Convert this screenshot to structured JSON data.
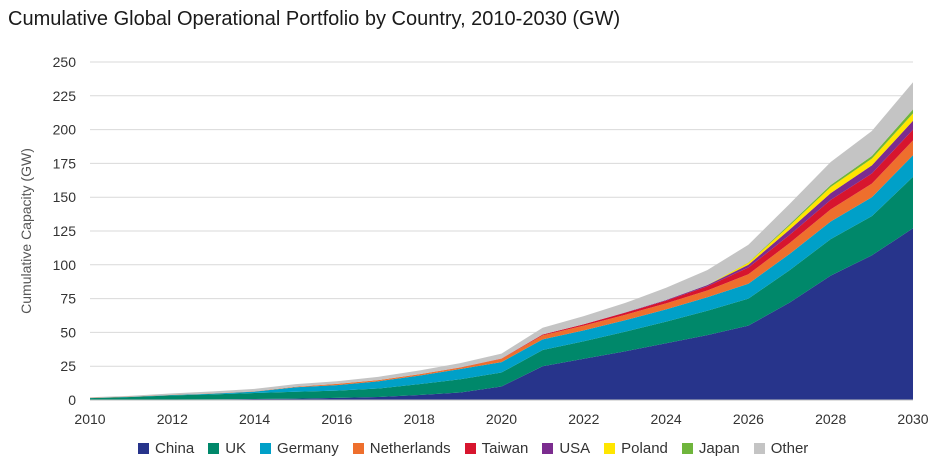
{
  "chart_data": {
    "type": "area",
    "stacked": true,
    "title": "Cumulative Global Operational Portfolio by Country, 2010-2030 (GW)",
    "xlabel": "",
    "ylabel": "Cumulative Capacity (GW)",
    "ylim": [
      0,
      250
    ],
    "yticks": [
      "0",
      "25",
      "50",
      "75",
      "100",
      "125",
      "150",
      "175",
      "200",
      "225",
      "250"
    ],
    "x": [
      2010,
      2011,
      2012,
      2013,
      2014,
      2015,
      2016,
      2017,
      2018,
      2019,
      2020,
      2021,
      2022,
      2023,
      2024,
      2025,
      2026,
      2027,
      2028,
      2029,
      2030
    ],
    "xticks": [
      "2010",
      "2012",
      "2014",
      "2016",
      "2018",
      "2020",
      "2022",
      "2024",
      "2026",
      "2028",
      "2030"
    ],
    "grid": true,
    "legend_position": "bottom",
    "series": [
      {
        "name": "China",
        "color": "#27348b",
        "values": [
          0.1,
          0.2,
          0.4,
          0.5,
          0.7,
          1.0,
          1.6,
          2.2,
          3.7,
          5.5,
          10.0,
          25.0,
          30.5,
          36.0,
          42.0,
          48.0,
          55.0,
          72.0,
          92.0,
          107.0,
          127.0
        ]
      },
      {
        "name": "UK",
        "color": "#00886a",
        "values": [
          1.3,
          2.0,
          3.0,
          3.7,
          4.5,
          5.1,
          5.3,
          6.3,
          8.0,
          9.8,
          10.3,
          12.0,
          13.0,
          14.5,
          16.0,
          18.0,
          20.0,
          24.0,
          27.0,
          29.0,
          38.0
        ]
      },
      {
        "name": "Germany",
        "color": "#00a0c8",
        "values": [
          0.1,
          0.2,
          0.3,
          0.5,
          1.0,
          3.3,
          4.1,
          5.3,
          6.3,
          7.6,
          7.7,
          7.8,
          8.0,
          8.5,
          9.0,
          10.0,
          11.0,
          12.0,
          13.0,
          14.0,
          16.0
        ]
      },
      {
        "name": "Netherlands",
        "color": "#ee6f2d",
        "values": [
          0.2,
          0.2,
          0.2,
          0.2,
          0.2,
          0.4,
          0.9,
          0.9,
          1.0,
          1.1,
          2.5,
          3.0,
          3.5,
          4.0,
          4.5,
          5.0,
          7.0,
          8.0,
          9.0,
          10.0,
          11.0
        ]
      },
      {
        "name": "Taiwan",
        "color": "#d7152e",
        "values": [
          0,
          0,
          0,
          0,
          0,
          0,
          0,
          0,
          0,
          0.1,
          0.2,
          0.6,
          1.0,
          1.5,
          2.0,
          3.0,
          5.0,
          6.0,
          7.0,
          7.5,
          8.0
        ]
      },
      {
        "name": "USA",
        "color": "#7b2c8f",
        "values": [
          0,
          0,
          0,
          0,
          0,
          0,
          0,
          0,
          0,
          0,
          0,
          0,
          0,
          0.2,
          0.5,
          1.0,
          2.0,
          4.0,
          5.0,
          6.0,
          6.5
        ]
      },
      {
        "name": "Poland",
        "color": "#ffe600",
        "values": [
          0,
          0,
          0,
          0,
          0,
          0,
          0,
          0,
          0,
          0,
          0,
          0,
          0,
          0,
          0,
          0,
          1.5,
          3.0,
          4.5,
          5.0,
          5.5
        ]
      },
      {
        "name": "Japan",
        "color": "#6fb53c",
        "values": [
          0,
          0,
          0,
          0,
          0,
          0,
          0,
          0,
          0,
          0,
          0,
          0,
          0,
          0,
          0,
          0.1,
          0.3,
          1.0,
          1.5,
          2.0,
          3.0
        ]
      },
      {
        "name": "Other",
        "color": "#c4c4c4",
        "values": [
          0.3,
          0.5,
          1.0,
          1.5,
          1.8,
          1.9,
          2.0,
          2.4,
          2.8,
          3.2,
          3.6,
          5.0,
          6.0,
          7.0,
          9.0,
          11.0,
          13.0,
          15.0,
          17.0,
          18.5,
          20.0
        ]
      }
    ]
  }
}
